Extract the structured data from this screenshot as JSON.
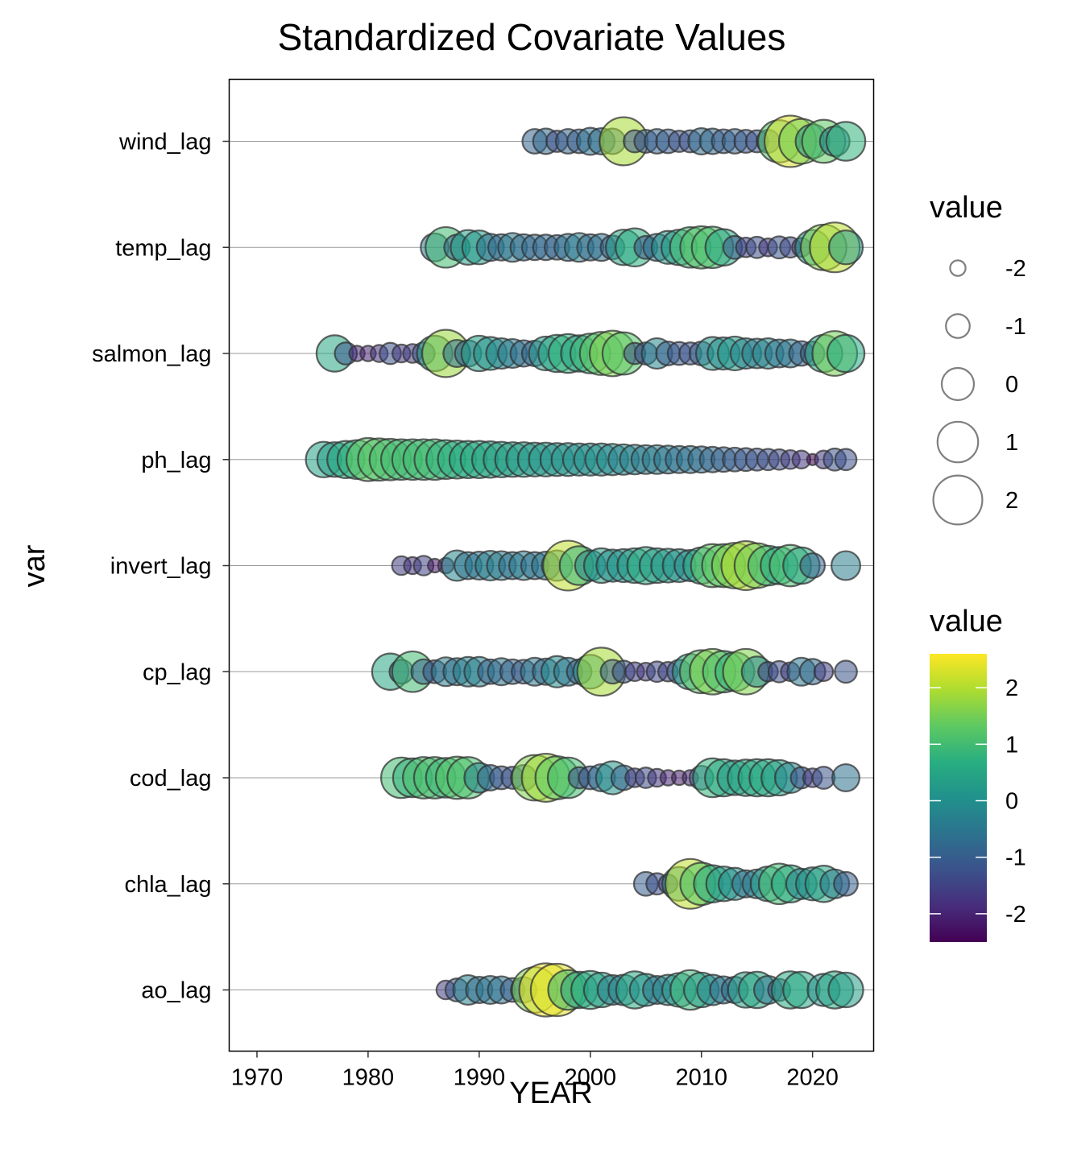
{
  "chart_data": {
    "type": "scatter",
    "title": "Standardized Covariate Values",
    "xlabel": "YEAR",
    "ylabel": "var",
    "xlim": [
      1967.5,
      2025.5
    ],
    "x_ticks": [
      1970,
      1980,
      1990,
      2000,
      2010,
      2020
    ],
    "categories": [
      "wind_lag",
      "temp_lag",
      "salmon_lag",
      "ph_lag",
      "invert_lag",
      "cp_lag",
      "cod_lag",
      "chla_lag",
      "ao_lag"
    ],
    "grid": true,
    "size_legend": {
      "title": "value",
      "breaks": [
        "-2",
        "-1",
        "0",
        "1",
        "2"
      ],
      "break_values": [
        -2,
        -1,
        0,
        1,
        2
      ]
    },
    "color_legend": {
      "title": "value",
      "breaks": [
        "2",
        "1",
        "0",
        "-1",
        "-2"
      ],
      "break_values": [
        2,
        1,
        0,
        -1,
        -2
      ],
      "range": [
        -2.5,
        2.6
      ],
      "palette": "viridis"
    },
    "series": [
      {
        "category": "wind_lag",
        "x": [
          1995,
          1996,
          1997,
          1998,
          1999,
          2000,
          2001,
          2002,
          2003,
          2004,
          2005,
          2006,
          2007,
          2008,
          2009,
          2010,
          2011,
          2012,
          2013,
          2014,
          2015,
          2016,
          2017,
          2018,
          2019,
          2020,
          2021,
          2022,
          2023
        ],
        "values": [
          -0.9,
          -0.8,
          -1.3,
          -0.9,
          -1.0,
          -0.6,
          -0.7,
          -0.8,
          1.9,
          -1.2,
          -1.1,
          -0.9,
          -1.0,
          -1.3,
          -1.2,
          -0.7,
          -0.8,
          -1.0,
          -0.9,
          -1.1,
          -1.2,
          -1.1,
          1.2,
          2.3,
          1.5,
          0.2,
          1.3,
          -0.3,
          0.8
        ]
      },
      {
        "category": "temp_lag",
        "x": [
          1986,
          1987,
          1988,
          1989,
          1990,
          1991,
          1992,
          1993,
          1994,
          1995,
          1996,
          1997,
          1998,
          1999,
          2000,
          2001,
          2002,
          2003,
          2004,
          2005,
          2006,
          2007,
          2008,
          2009,
          2010,
          2011,
          2012,
          2013,
          2014,
          2015,
          2016,
          2017,
          2018,
          2019,
          2020,
          2021,
          2022,
          2023
        ],
        "values": [
          -0.5,
          1.0,
          -0.8,
          0.3,
          0.2,
          -0.6,
          -0.7,
          -0.4,
          -0.7,
          -0.8,
          -0.8,
          -0.9,
          -0.6,
          -0.4,
          -0.7,
          -0.6,
          -1.0,
          0.4,
          0.7,
          -1.1,
          -0.6,
          0.1,
          0.4,
          1.0,
          1.2,
          1.1,
          0.5,
          -1.1,
          -1.5,
          -1.3,
          -1.7,
          -1.2,
          -1.4,
          -1.6,
          0.3,
          1.6,
          2.1,
          0.2
        ]
      },
      {
        "category": "salmon_lag",
        "x": [
          1977,
          1978,
          1979,
          1980,
          1981,
          1982,
          1983,
          1984,
          1985,
          1986,
          1987,
          1988,
          1989,
          1990,
          1991,
          1992,
          1993,
          1994,
          1995,
          1996,
          1997,
          1998,
          1999,
          2000,
          2001,
          2002,
          2003,
          2004,
          2005,
          2006,
          2007,
          2008,
          2009,
          2010,
          2011,
          2012,
          2013,
          2014,
          2015,
          2016,
          2017,
          2018,
          2019,
          2020,
          2021,
          2022,
          2023
        ],
        "values": [
          0.5,
          -1.2,
          -2.0,
          -2.0,
          -1.8,
          -1.3,
          -1.7,
          -1.6,
          -1.2,
          0.4,
          1.8,
          -0.6,
          -0.7,
          0.4,
          0.1,
          -0.2,
          -0.4,
          -0.7,
          -0.8,
          0.2,
          0.6,
          0.8,
          0.5,
          0.9,
          1.3,
          1.6,
          1.2,
          -1.3,
          -1.2,
          -0.2,
          -1.0,
          -1.1,
          -1.2,
          -1.0,
          0.1,
          0.0,
          0.2,
          -0.2,
          -0.3,
          -0.2,
          -0.5,
          -0.5,
          -0.9,
          -1.0,
          0.6,
          1.5,
          0.6
        ]
      },
      {
        "category": "ph_lag",
        "x": [
          1976,
          1977,
          1978,
          1979,
          1980,
          1981,
          1982,
          1983,
          1984,
          1985,
          1986,
          1987,
          1988,
          1989,
          1990,
          1991,
          1992,
          1993,
          1994,
          1995,
          1996,
          1997,
          1998,
          1999,
          2000,
          2001,
          2002,
          2003,
          2004,
          2005,
          2006,
          2007,
          2008,
          2009,
          2010,
          2011,
          2012,
          2013,
          2014,
          2015,
          2016,
          2017,
          2018,
          2019,
          2020,
          2021,
          2022,
          2023
        ],
        "values": [
          0.4,
          0.3,
          0.6,
          0.8,
          1.3,
          1.2,
          1.1,
          1.0,
          1.0,
          1.0,
          1.0,
          0.8,
          0.7,
          0.6,
          0.6,
          0.5,
          0.4,
          0.3,
          0.3,
          0.2,
          0.2,
          0.1,
          0.1,
          0.0,
          0.0,
          0.0,
          -0.1,
          -0.2,
          -0.3,
          -0.4,
          -0.4,
          -0.5,
          -0.6,
          -0.6,
          -0.7,
          -0.8,
          -0.9,
          -1.0,
          -1.1,
          -1.2,
          -1.3,
          -1.4,
          -1.6,
          -1.7,
          -2.5,
          -1.7,
          -1.2,
          -1.3
        ]
      },
      {
        "category": "invert_lag",
        "x": [
          1983,
          1984,
          1985,
          1986,
          1987,
          1988,
          1989,
          1990,
          1991,
          1992,
          1993,
          1994,
          1995,
          1996,
          1997,
          1998,
          1999,
          2000,
          2001,
          2002,
          2003,
          2004,
          2005,
          2006,
          2007,
          2008,
          2009,
          2010,
          2011,
          2012,
          2013,
          2014,
          2015,
          2016,
          2017,
          2018,
          2019,
          2020,
          2023
        ],
        "values": [
          -1.6,
          -1.8,
          -1.5,
          -2.2,
          -2.0,
          -0.2,
          -0.6,
          -0.5,
          -0.3,
          -0.4,
          -0.6,
          -0.4,
          -0.6,
          -0.5,
          -0.2,
          2.1,
          0.8,
          -0.2,
          0.3,
          0.0,
          0.1,
          0.3,
          0.6,
          0.3,
          0.2,
          0.1,
          -0.1,
          0.5,
          1.3,
          1.3,
          1.6,
          2.0,
          1.5,
          0.9,
          0.6,
          1.1,
          0.5,
          -0.9,
          -0.4
        ]
      },
      {
        "category": "cp_lag",
        "x": [
          1982,
          1983,
          1984,
          1985,
          1986,
          1987,
          1988,
          1989,
          1990,
          1991,
          1992,
          1993,
          1994,
          1995,
          1996,
          1997,
          1998,
          1999,
          2000,
          2001,
          2002,
          2003,
          2004,
          2005,
          2006,
          2007,
          2008,
          2009,
          2010,
          2011,
          2012,
          2013,
          2014,
          2015,
          2016,
          2017,
          2018,
          2019,
          2020,
          2021,
          2023
        ],
        "values": [
          0.5,
          -1.0,
          1.0,
          -0.9,
          -1.1,
          -0.4,
          -0.6,
          -0.3,
          -0.3,
          -0.9,
          -0.6,
          -0.9,
          -1.0,
          -0.5,
          -0.7,
          -0.1,
          -0.5,
          -0.9,
          0.2,
          1.9,
          -1.0,
          -1.2,
          -1.6,
          -1.7,
          -1.4,
          -1.5,
          -1.0,
          0.4,
          1.3,
          1.6,
          1.1,
          0.8,
          1.6,
          -0.2,
          -1.5,
          -1.3,
          -1.6,
          -0.5,
          -0.8,
          -1.6,
          -1.2
        ]
      },
      {
        "category": "cod_lag",
        "x": [
          1983,
          1984,
          1985,
          1986,
          1987,
          1988,
          1989,
          1990,
          1991,
          1992,
          1993,
          1994,
          1995,
          1996,
          1997,
          1998,
          1999,
          2000,
          2001,
          2002,
          2003,
          2004,
          2005,
          2006,
          2007,
          2008,
          2009,
          2010,
          2011,
          2012,
          2013,
          2014,
          2015,
          2016,
          2017,
          2018,
          2019,
          2020,
          2021,
          2023
        ],
        "values": [
          1.0,
          0.8,
          1.1,
          1.1,
          0.9,
          1.2,
          1.1,
          -0.3,
          -0.8,
          -1.1,
          -1.2,
          -0.8,
          1.6,
          1.9,
          1.3,
          1.0,
          -1.3,
          -1.1,
          -0.6,
          0.1,
          -0.9,
          -1.6,
          -1.4,
          -1.7,
          -2.0,
          -2.1,
          -2.0,
          -1.0,
          0.8,
          0.6,
          0.3,
          0.5,
          0.6,
          0.6,
          0.4,
          -0.2,
          -1.3,
          -1.6,
          -1.2,
          -0.6
        ]
      },
      {
        "category": "chla_lag",
        "x": [
          2005,
          2006,
          2007,
          2008,
          2009,
          2010,
          2011,
          2012,
          2013,
          2014,
          2015,
          2016,
          2017,
          2018,
          2019,
          2020,
          2021,
          2022,
          2023
        ],
        "values": [
          -1.0,
          -1.3,
          -1.6,
          0.2,
          2.1,
          1.2,
          0.6,
          0.3,
          0.0,
          -0.6,
          -0.4,
          0.3,
          1.0,
          0.6,
          -0.2,
          0.1,
          0.5,
          -0.4,
          -1.0
        ]
      },
      {
        "category": "ao_lag",
        "x": [
          1987,
          1988,
          1989,
          1990,
          1991,
          1992,
          1993,
          1994,
          1995,
          1996,
          1997,
          1998,
          1999,
          2000,
          2001,
          2002,
          2003,
          2004,
          2005,
          2006,
          2007,
          2008,
          2009,
          2010,
          2011,
          2012,
          2013,
          2014,
          2015,
          2016,
          2017,
          2018,
          2019,
          2021,
          2022,
          2023
        ],
        "values": [
          -1.6,
          -1.1,
          -0.3,
          -0.7,
          -0.5,
          -0.6,
          -1.0,
          -0.8,
          1.6,
          2.5,
          2.4,
          0.9,
          0.5,
          0.7,
          0.3,
          -0.3,
          -0.2,
          0.6,
          0.0,
          -0.5,
          -0.2,
          0.2,
          0.9,
          0.3,
          -0.2,
          -0.6,
          -0.7,
          0.4,
          0.5,
          -0.5,
          -1.2,
          0.6,
          0.5,
          0.0,
          0.6,
          0.3
        ]
      }
    ]
  }
}
